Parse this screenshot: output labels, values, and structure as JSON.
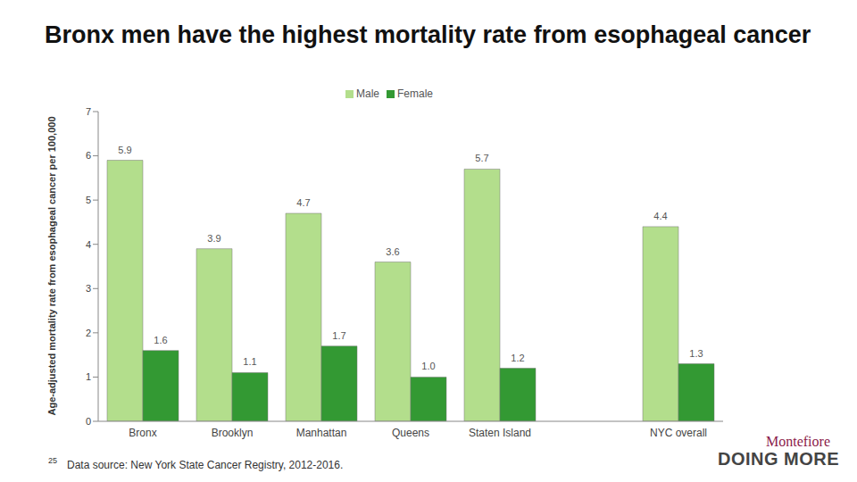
{
  "chart_data": {
    "type": "bar",
    "title": "Bronx men have the highest mortality rate from esophageal cancer",
    "y_label": "Age-adjusted mortality rate from esophageal cancer per 100,000",
    "categories": [
      "Bronx",
      "Brooklyn",
      "Manhattan",
      "Queens",
      "Staten Island",
      null,
      "NYC overall"
    ],
    "series": [
      {
        "name": "Male",
        "color": "#b3de8c",
        "values": [
          5.9,
          3.9,
          4.7,
          3.6,
          5.7,
          null,
          4.4
        ]
      },
      {
        "name": "Female",
        "color": "#339933",
        "values": [
          1.6,
          1.1,
          1.7,
          1.0,
          1.2,
          null,
          1.3
        ],
        "value_labels": [
          "1.6",
          "1.1",
          "1.7",
          "1.0",
          "1.2",
          null,
          "1.3"
        ]
      }
    ],
    "ylim": [
      0,
      7
    ],
    "yticks": [
      0,
      1,
      2,
      3,
      4,
      5,
      6,
      7
    ],
    "grid": false,
    "legend": "top",
    "data_labels": true,
    "annotations": [
      "25",
      "Data source: New York State Cancer Registry, 2012-2016.",
      "Montefiore",
      "DOING MORE"
    ]
  }
}
